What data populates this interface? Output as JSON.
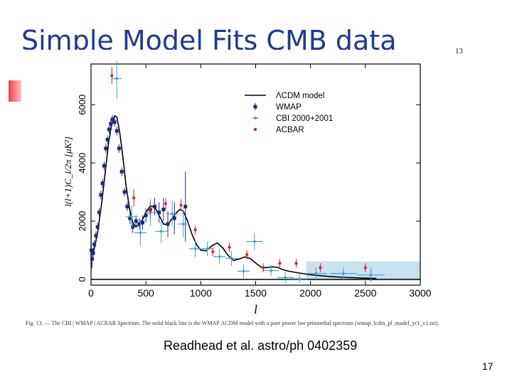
{
  "slide": {
    "title": "Simple Model Fits CMB data",
    "figure_page_number": "13",
    "citation": "Readhead et al. astro/ph 0402359",
    "slide_number": "17",
    "caption": "Fig. 13. — The CBI | WMAP | ACBAR Spectrum. The solid black line is the WMAP ΛCDM model with a pure power law primordial spectrum (wmap_lcdm_pl_model_yr1_v1.txt)."
  },
  "colors": {
    "wmap": "#1a2d7a",
    "cbi": "#3fa0d8",
    "acbar": "#d42020",
    "model": "#000000",
    "band": "#9cc7e3"
  },
  "chart_data": {
    "type": "scatter",
    "xlabel": "l",
    "ylabel": "l(l+1)C_l/2π [μK²]",
    "xlim": [
      0,
      3000
    ],
    "ylim": [
      -200,
      7400
    ],
    "xticks": [
      0,
      500,
      1000,
      1500,
      2000,
      2500,
      3000
    ],
    "yticks": [
      0,
      2000,
      4000,
      6000
    ],
    "legend": {
      "position": "top-right",
      "entries": [
        "ΛCDM model",
        "WMAP",
        "CBI 2000+2001",
        "ACBAR"
      ]
    },
    "model": {
      "name": "ΛCDM model",
      "x": [
        2,
        10,
        30,
        60,
        100,
        130,
        160,
        190,
        215,
        235,
        260,
        290,
        320,
        350,
        380,
        410,
        440,
        470,
        500,
        540,
        580,
        620,
        660,
        700,
        740,
        780,
        810,
        840,
        880,
        920,
        960,
        1000,
        1050,
        1100,
        1150,
        1200,
        1250,
        1300,
        1350,
        1400,
        1450,
        1500,
        1550,
        1600,
        1650,
        1700,
        1750,
        1800,
        1900,
        2000,
        2100,
        2200,
        2300,
        2400,
        2500,
        2600
      ],
      "y": [
        800,
        850,
        1050,
        1600,
        2700,
        3700,
        4700,
        5350,
        5620,
        5580,
        5100,
        4200,
        3200,
        2450,
        1950,
        1800,
        1900,
        2050,
        2300,
        2520,
        2480,
        2200,
        1900,
        1880,
        2100,
        2300,
        2400,
        2350,
        2000,
        1550,
        1200,
        1000,
        980,
        1150,
        1250,
        1080,
        820,
        650,
        700,
        770,
        720,
        560,
        420,
        400,
        430,
        410,
        330,
        280,
        215,
        160,
        120,
        90,
        70,
        55,
        42,
        30
      ]
    },
    "series": [
      {
        "name": "WMAP",
        "x": [
          3,
          10,
          20,
          30,
          45,
          60,
          75,
          90,
          105,
          120,
          135,
          150,
          165,
          180,
          195,
          215,
          235,
          255,
          280,
          305,
          330,
          355,
          380,
          410,
          440,
          470,
          500,
          540,
          580,
          620,
          660,
          700,
          760,
          860
        ],
        "y": [
          1000,
          700,
          900,
          1200,
          1500,
          1800,
          2300,
          2900,
          3300,
          3900,
          4500,
          4800,
          5150,
          5350,
          5500,
          5400,
          5100,
          4500,
          3700,
          3000,
          2500,
          2100,
          1800,
          2000,
          1900,
          1950,
          2200,
          2400,
          2500,
          2300,
          2400,
          1900,
          2100,
          2500
        ],
        "yerr": [
          700,
          300,
          200,
          150,
          150,
          150,
          150,
          150,
          150,
          150,
          150,
          150,
          150,
          150,
          150,
          150,
          150,
          150,
          150,
          150,
          150,
          200,
          200,
          200,
          200,
          250,
          250,
          300,
          300,
          350,
          400,
          450,
          550,
          1200
        ]
      },
      {
        "name": "CBI 2000+2001",
        "x": [
          235,
          370,
          450,
          540,
          640,
          740,
          840,
          950,
          1060,
          1170,
          1280,
          1390,
          1490,
          1640,
          1770,
          1900,
          2050,
          2300,
          2550
        ],
        "y": [
          6900,
          2150,
          1600,
          2300,
          1650,
          2250,
          1900,
          1050,
          1050,
          780,
          720,
          280,
          1300,
          300,
          60,
          20,
          200,
          200,
          150
        ],
        "yerr": [
          700,
          400,
          450,
          450,
          400,
          450,
          450,
          300,
          250,
          250,
          250,
          250,
          300,
          200,
          200,
          150,
          200,
          200,
          250
        ],
        "xerr": [
          45,
          55,
          55,
          55,
          55,
          55,
          55,
          55,
          55,
          55,
          55,
          55,
          75,
          75,
          75,
          75,
          100,
          125,
          125
        ]
      },
      {
        "name": "ACBAR",
        "x": [
          190,
          390,
          540,
          680,
          820,
          950,
          1110,
          1260,
          1420,
          1570,
          1720,
          1870,
          2090,
          2500
        ],
        "y": [
          7000,
          2800,
          2400,
          2600,
          2550,
          1700,
          950,
          1100,
          850,
          400,
          550,
          550,
          400,
          400
        ],
        "yerr": [
          300,
          300,
          200,
          200,
          200,
          150,
          150,
          150,
          150,
          150,
          150,
          150,
          150,
          150
        ]
      }
    ],
    "band": {
      "x": [
        1960,
        3000
      ],
      "y": [
        -40,
        620
      ]
    }
  }
}
